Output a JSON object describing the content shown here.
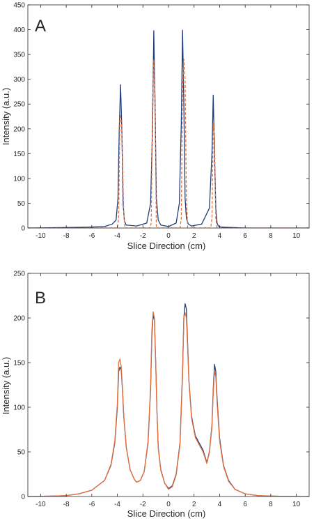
{
  "colors": {
    "series_solid": "#1f3f7a",
    "series_dashed": "#e8703a",
    "axis": "#262626",
    "background": "#ffffff"
  },
  "chart_data": [
    {
      "panel_label": "A",
      "type": "line",
      "xlabel": "Slice Direction (cm)",
      "ylabel": "Intensity (a.u.)",
      "xlim": [
        -11,
        11
      ],
      "ylim": [
        0,
        450
      ],
      "xticks": [
        -10,
        -8,
        -6,
        -4,
        -2,
        0,
        2,
        4,
        6,
        8,
        10
      ],
      "yticks": [
        0,
        50,
        100,
        150,
        200,
        250,
        300,
        350,
        400,
        450
      ],
      "grid": false,
      "legend": "none",
      "series": [
        {
          "style": "solid",
          "color": "#1f3f7a",
          "x": [
            -11,
            -8,
            -6,
            -5,
            -4.4,
            -4.1,
            -3.95,
            -3.85,
            -3.75,
            -3.65,
            -3.55,
            -3.45,
            -3.3,
            -2.5,
            -1.7,
            -1.4,
            -1.25,
            -1.15,
            -1.05,
            -0.95,
            -0.8,
            -0.6,
            0,
            0.6,
            0.85,
            1.0,
            1.1,
            1.2,
            1.3,
            1.4,
            1.55,
            1.8,
            2.6,
            3.2,
            3.4,
            3.5,
            3.6,
            3.7,
            3.8,
            3.9,
            4.1,
            5,
            6,
            8,
            11
          ],
          "y": [
            0,
            1,
            2,
            3,
            8,
            16,
            60,
            200,
            289,
            200,
            50,
            14,
            6,
            4,
            10,
            50,
            200,
            398,
            250,
            60,
            16,
            6,
            3,
            10,
            50,
            210,
            399,
            250,
            60,
            20,
            8,
            4,
            8,
            40,
            150,
            268,
            150,
            40,
            10,
            4,
            2,
            1,
            0,
            0,
            0
          ]
        },
        {
          "style": "dashed",
          "color": "#e8703a",
          "x": [
            -11,
            -4.0,
            -3.9,
            -3.8,
            -3.75,
            -3.65,
            -3.5,
            -3.4,
            -1.45,
            -1.35,
            -1.25,
            -1.15,
            -1.05,
            -0.95,
            0.9,
            1.0,
            1.1,
            1.2,
            1.3,
            1.4,
            1.5,
            3.3,
            3.4,
            3.5,
            3.6,
            3.7,
            3.8,
            11
          ],
          "y": [
            0,
            0,
            20,
            220,
            229,
            200,
            30,
            0,
            0,
            10,
            240,
            340,
            260,
            0,
            0,
            20,
            280,
            340,
            300,
            60,
            0,
            0,
            20,
            210,
            180,
            20,
            0,
            0
          ]
        }
      ]
    },
    {
      "panel_label": "B",
      "type": "line",
      "xlabel": "Slice Direction (cm)",
      "ylabel": "Intensity (a.u.)",
      "xlim": [
        -11,
        11
      ],
      "ylim": [
        0,
        250
      ],
      "xticks": [
        -10,
        -8,
        -6,
        -4,
        -2,
        0,
        2,
        4,
        6,
        8,
        10
      ],
      "yticks": [
        0,
        50,
        100,
        150,
        200,
        250
      ],
      "grid": false,
      "legend": "none",
      "series": [
        {
          "style": "solid",
          "color": "#1f3f7a",
          "x": [
            -11,
            -9,
            -8,
            -7,
            -6,
            -5,
            -4.5,
            -4.2,
            -4.0,
            -3.9,
            -3.8,
            -3.7,
            -3.6,
            -3.5,
            -3.3,
            -3.0,
            -2.7,
            -2.5,
            -2.2,
            -1.9,
            -1.6,
            -1.4,
            -1.3,
            -1.2,
            -1.1,
            -1.0,
            -0.9,
            -0.8,
            -0.6,
            -0.3,
            0,
            0.3,
            0.6,
            0.9,
            1.1,
            1.2,
            1.3,
            1.4,
            1.5,
            1.6,
            1.8,
            2.1,
            2.4,
            2.7,
            3.0,
            3.2,
            3.4,
            3.5,
            3.6,
            3.7,
            3.8,
            4.0,
            4.3,
            4.7,
            5.2,
            6,
            7,
            8,
            9,
            11
          ],
          "y": [
            0,
            0.5,
            1,
            3,
            7,
            18,
            35,
            60,
            100,
            140,
            145,
            142,
            120,
            90,
            55,
            30,
            20,
            16,
            18,
            28,
            60,
            120,
            180,
            203,
            198,
            150,
            95,
            55,
            30,
            15,
            9,
            12,
            25,
            60,
            140,
            200,
            216,
            210,
            170,
            130,
            90,
            68,
            60,
            52,
            38,
            50,
            80,
            120,
            148,
            140,
            110,
            65,
            35,
            18,
            8,
            3,
            1,
            0.5,
            0.2,
            0
          ]
        },
        {
          "style": "solid",
          "color": "#e8703a",
          "x": [
            -11,
            -9,
            -8,
            -7,
            -6,
            -5,
            -4.5,
            -4.2,
            -4.0,
            -3.9,
            -3.8,
            -3.7,
            -3.6,
            -3.5,
            -3.3,
            -3.0,
            -2.7,
            -2.5,
            -2.2,
            -1.9,
            -1.6,
            -1.4,
            -1.3,
            -1.2,
            -1.1,
            -1.0,
            -0.9,
            -0.8,
            -0.6,
            -0.3,
            0,
            0.3,
            0.6,
            0.9,
            1.1,
            1.2,
            1.3,
            1.4,
            1.5,
            1.6,
            1.8,
            2.1,
            2.4,
            2.7,
            3.0,
            3.2,
            3.4,
            3.5,
            3.6,
            3.7,
            3.8,
            4.0,
            4.3,
            4.7,
            5.2,
            6,
            7,
            8,
            9,
            11
          ],
          "y": [
            0,
            0.5,
            1,
            3,
            7,
            18,
            36,
            62,
            104,
            150,
            154,
            146,
            122,
            91,
            55,
            30,
            20,
            16,
            18,
            28,
            62,
            124,
            186,
            207,
            200,
            150,
            94,
            54,
            29,
            15,
            8,
            11,
            24,
            58,
            135,
            200,
            206,
            200,
            165,
            128,
            88,
            66,
            58,
            50,
            37,
            49,
            78,
            116,
            140,
            134,
            105,
            62,
            34,
            17,
            8,
            3,
            1,
            0.5,
            0.2,
            0
          ]
        }
      ]
    }
  ]
}
